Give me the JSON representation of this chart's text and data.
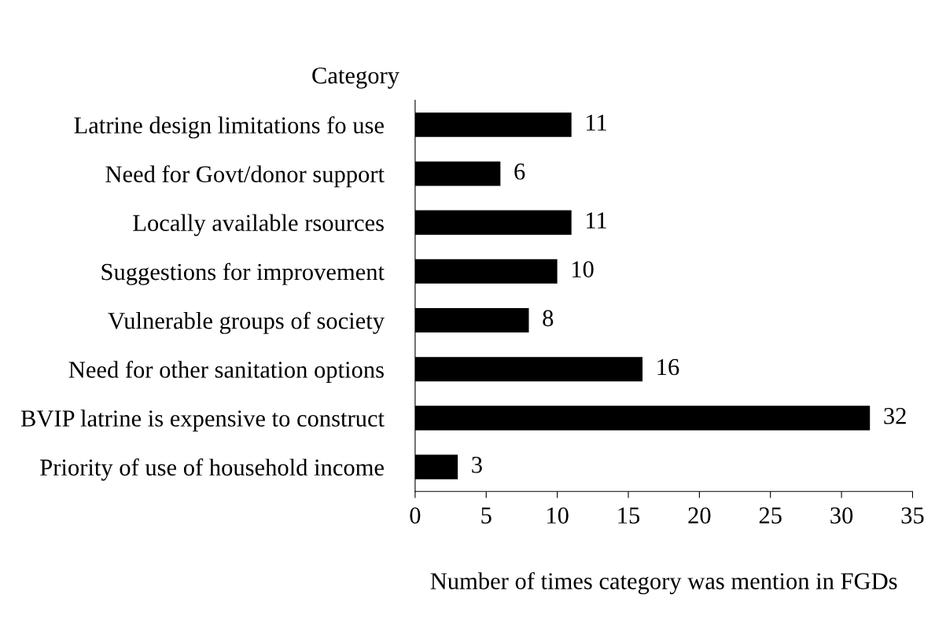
{
  "chart_data": {
    "type": "bar",
    "orientation": "horizontal",
    "ylabel": "Category",
    "xlabel": "Number of times category was mention in FGDs",
    "categories": [
      "Latrine design limitations fo use",
      "Need for Govt/donor support",
      "Locally available rsources",
      "Suggestions for improvement",
      "Vulnerable groups of society",
      "Need for other sanitation options",
      "BVIP latrine is expensive to construct",
      "Priority of use of household income"
    ],
    "values": [
      11,
      6,
      11,
      10,
      8,
      16,
      32,
      3
    ],
    "color": "#000000",
    "xlim": [
      0,
      35
    ],
    "xticks": [
      0,
      5,
      10,
      15,
      20,
      25,
      30,
      35
    ],
    "data_labels": true,
    "grid": false,
    "legend": false
  }
}
